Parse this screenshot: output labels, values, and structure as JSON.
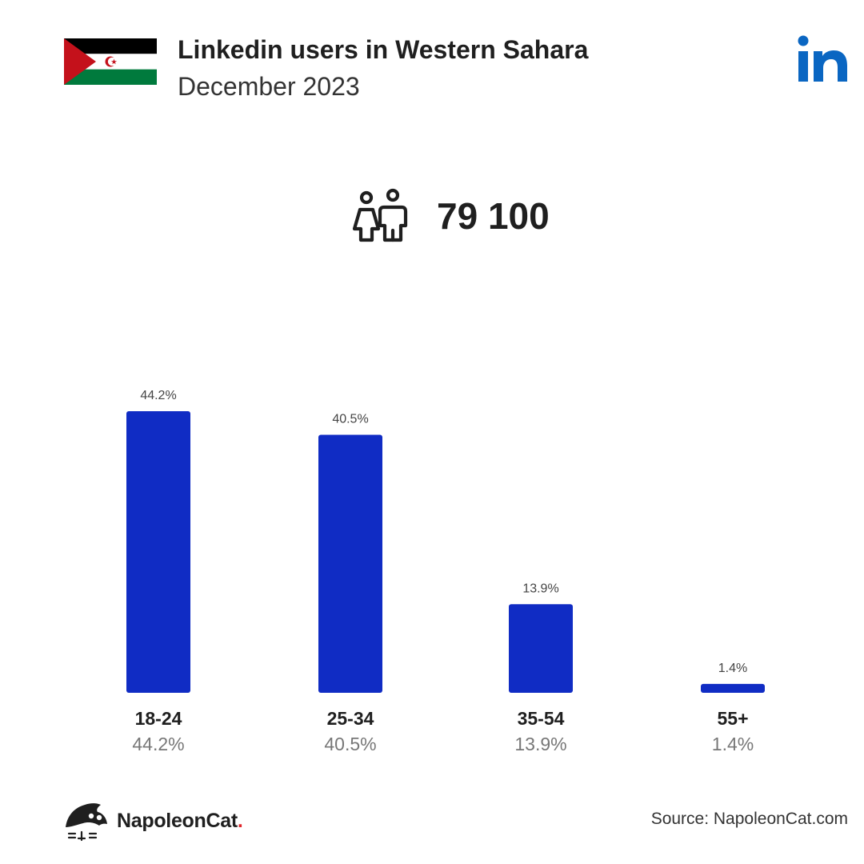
{
  "header": {
    "title": "Linkedin users in Western Sahara",
    "subtitle": "December 2023",
    "flag_icon": "western-sahara-flag-icon",
    "brand_icon": "linkedin-logo-icon",
    "brand_color": "#0a66c2"
  },
  "summary": {
    "icon": "users-icon",
    "total": "79 100"
  },
  "chart_data": {
    "type": "bar",
    "categories": [
      "18-24",
      "25-34",
      "35-54",
      "55+"
    ],
    "values": [
      44.2,
      40.5,
      13.9,
      1.4
    ],
    "value_labels": [
      "44.2%",
      "40.5%",
      "13.9%",
      "1.4%"
    ],
    "sub_labels": [
      "44.2%",
      "40.5%",
      "13.9%",
      "1.4%"
    ],
    "bar_color": "#102cc4",
    "ylim": [
      0,
      44.2
    ],
    "grid": false,
    "legend": "none"
  },
  "footer": {
    "logo_icon": "napoleoncat-logo-icon",
    "brand_name": "NapoleonCat",
    "brand_dot": ".",
    "source": "Source: NapoleonCat.com"
  }
}
